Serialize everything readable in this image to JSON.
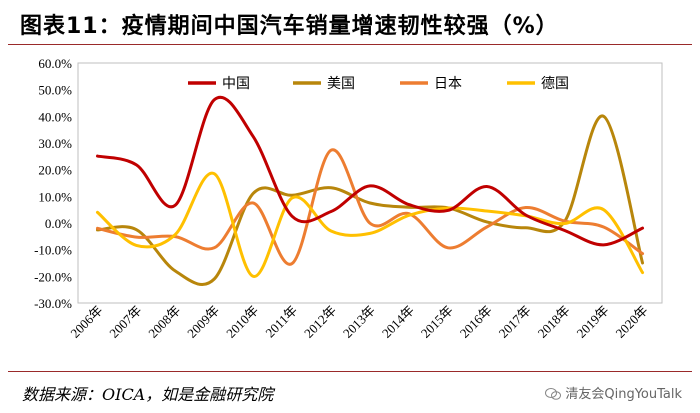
{
  "title": "图表11：疫情期间中国汽车销量增速韧性较强（%）",
  "source": "数据来源：OICA，如是金融研究院",
  "watermark": "清友会QingYouTalk",
  "colors": {
    "china": "#C00000",
    "usa": "#B8860B",
    "japan": "#ED7D31",
    "germany": "#FFC000",
    "rule": "#9a2a2a"
  },
  "chart_data": {
    "type": "line",
    "categories": [
      "2006年",
      "2007年",
      "2008年",
      "2009年",
      "2010年",
      "2011年",
      "2012年",
      "2013年",
      "2014年",
      "2015年",
      "2016年",
      "2017年",
      "2018年",
      "2019年",
      "2020年"
    ],
    "ylim": [
      -30,
      60
    ],
    "yticks": [
      "-30.0%",
      "-20.0%",
      "-10.0%",
      "0.0%",
      "10.0%",
      "20.0%",
      "30.0%",
      "40.0%",
      "50.0%",
      "60.0%"
    ],
    "legend_position": "top-center",
    "series": [
      {
        "name": "中国",
        "color_key": "china",
        "values": [
          25.1,
          21.8,
          6.7,
          46.2,
          32.4,
          2.5,
          4.3,
          13.9,
          6.9,
          4.7,
          13.7,
          3.0,
          -2.8,
          -8.2,
          -1.9
        ]
      },
      {
        "name": "美国",
        "color_key": "usa",
        "values": [
          -2.6,
          -2.5,
          -18.0,
          -21.0,
          11.1,
          10.4,
          13.2,
          7.5,
          5.9,
          5.7,
          0.4,
          -1.8,
          0.6,
          40.0,
          -15.0
        ]
      },
      {
        "name": "日本",
        "color_key": "japan",
        "values": [
          -2.0,
          -5.3,
          -5.1,
          -9.3,
          7.5,
          -15.2,
          27.3,
          -0.1,
          3.5,
          -9.3,
          -1.5,
          5.8,
          0.7,
          -1.5,
          -11.5
        ]
      },
      {
        "name": "德国",
        "color_key": "germany",
        "values": [
          4.0,
          -8.4,
          -4.3,
          18.5,
          -20.0,
          9.4,
          -3.0,
          -3.9,
          2.9,
          5.6,
          4.5,
          2.7,
          -0.2,
          5.0,
          -18.6
        ]
      }
    ]
  }
}
